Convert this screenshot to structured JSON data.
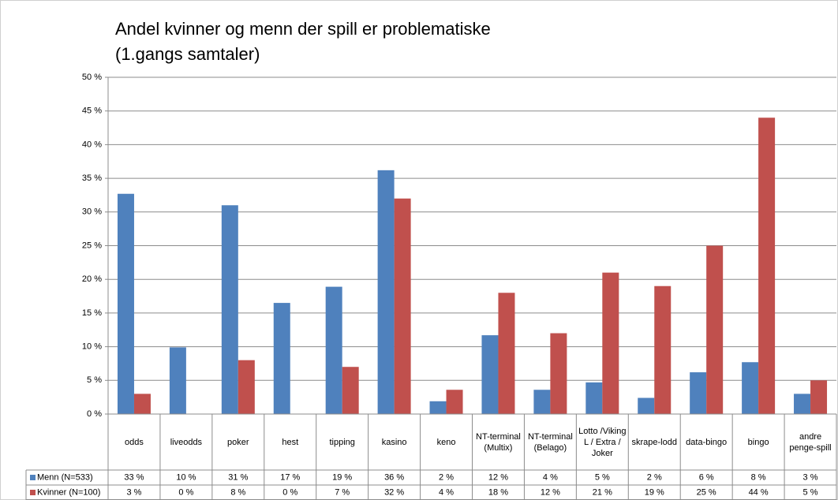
{
  "chart_data": {
    "type": "bar",
    "title": [
      "Andel kvinner og menn der spill er problematiske",
      "(1.gangs samtaler)"
    ],
    "categories": [
      "odds",
      "liveodds",
      "poker",
      "hest",
      "tipping",
      "kasino",
      "keno",
      "NT-terminal (Multix)",
      "NT-terminal (Belago)",
      "Lotto /Viking L / Extra / Joker",
      "skrape-lodd",
      "data-bingo",
      "bingo",
      "andre penge-spill"
    ],
    "series": [
      {
        "name": "Menn (N=533)",
        "color": "#4f81bd",
        "values": [
          32.7,
          9.9,
          31.0,
          16.5,
          18.9,
          36.2,
          1.9,
          11.7,
          3.6,
          4.7,
          2.4,
          6.2,
          7.7,
          3.0
        ],
        "value_labels": [
          "33 %",
          "10 %",
          "31 %",
          "17 %",
          "19 %",
          "36 %",
          "2 %",
          "12 %",
          "4 %",
          "5 %",
          "2 %",
          "6 %",
          "8 %",
          "3 %"
        ]
      },
      {
        "name": "Kvinner (N=100)",
        "color": "#c0504d",
        "values": [
          3,
          0,
          8,
          0,
          7,
          32,
          3.6,
          18,
          12,
          21,
          19,
          25,
          44,
          5
        ],
        "value_labels": [
          "3 %",
          "0 %",
          "8 %",
          "0 %",
          "7 %",
          "32 %",
          "4 %",
          "18 %",
          "12 %",
          "21 %",
          "19 %",
          "25 %",
          "44 %",
          "5 %"
        ]
      }
    ],
    "ylim": [
      0,
      50
    ],
    "yticks": [
      {
        "value": 0,
        "label": "0 %"
      },
      {
        "value": 5,
        "label": "5 %"
      },
      {
        "value": 10,
        "label": "10 %"
      },
      {
        "value": 15,
        "label": "15 %"
      },
      {
        "value": 20,
        "label": "20 %"
      },
      {
        "value": 25,
        "label": "25 %"
      },
      {
        "value": 30,
        "label": "30 %"
      },
      {
        "value": 35,
        "label": "35 %"
      },
      {
        "value": 40,
        "label": "40 %"
      },
      {
        "value": 45,
        "label": "45 %"
      },
      {
        "value": 50,
        "label": "50 %"
      }
    ],
    "grid": true
  }
}
